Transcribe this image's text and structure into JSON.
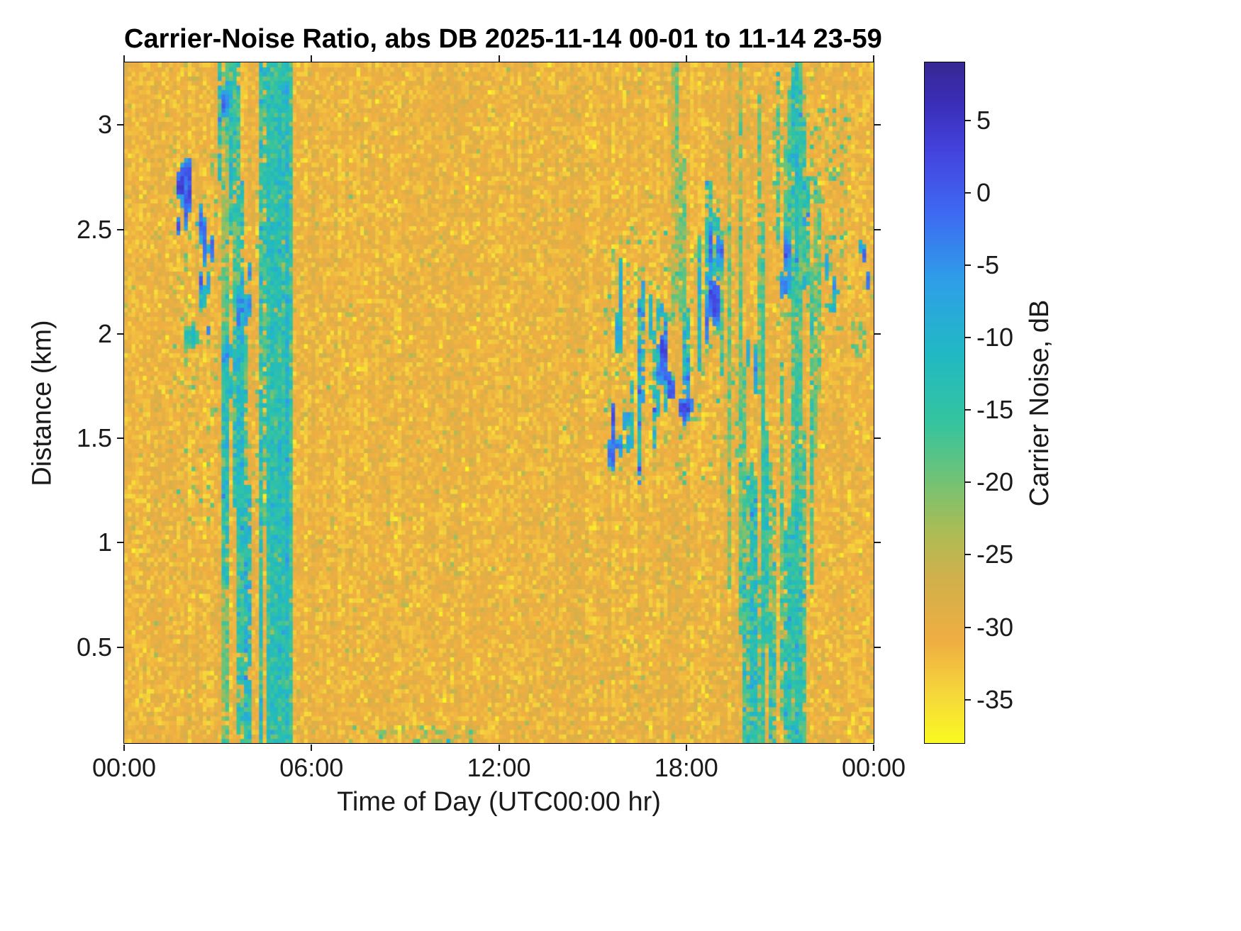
{
  "chart_data": {
    "type": "heatmap",
    "title": "Carrier-Noise Ratio, abs DB 2025-11-14 00-01 to 11-14 23-59",
    "xlabel": "Time of Day (UTC00:00 hr)",
    "ylabel": "Distance (km)",
    "colorbar_label": "Carrier Noise, dB",
    "x_range_hours": [
      0,
      24
    ],
    "y_range_km": [
      0.04,
      3.3
    ],
    "color_range_db": [
      -38,
      9
    ],
    "x_ticks": [
      {
        "hour": 0,
        "label": "00:00"
      },
      {
        "hour": 6,
        "label": "06:00"
      },
      {
        "hour": 12,
        "label": "12:00"
      },
      {
        "hour": 18,
        "label": "18:00"
      },
      {
        "hour": 24,
        "label": "00:00"
      }
    ],
    "y_ticks": [
      {
        "km": 0.5,
        "label": "0.5"
      },
      {
        "km": 1,
        "label": "1"
      },
      {
        "km": 1.5,
        "label": "1.5"
      },
      {
        "km": 2,
        "label": "2"
      },
      {
        "km": 2.5,
        "label": "2.5"
      },
      {
        "km": 3,
        "label": "3"
      }
    ],
    "colorbar_ticks": [
      {
        "db": 5,
        "label": "5"
      },
      {
        "db": 0,
        "label": "0"
      },
      {
        "db": -5,
        "label": "-5"
      },
      {
        "db": -10,
        "label": "-10"
      },
      {
        "db": -15,
        "label": "-15"
      },
      {
        "db": -20,
        "label": "-20"
      },
      {
        "db": -25,
        "label": "-25"
      },
      {
        "db": -30,
        "label": "-30"
      },
      {
        "db": -35,
        "label": "-35"
      }
    ],
    "colormap": [
      [
        0.0,
        "#FAF921"
      ],
      [
        0.07,
        "#F6D83B"
      ],
      [
        0.15,
        "#EFAE42"
      ],
      [
        0.24,
        "#D2B04B"
      ],
      [
        0.31,
        "#ACBC55"
      ],
      [
        0.39,
        "#6FC377"
      ],
      [
        0.47,
        "#35C49E"
      ],
      [
        0.57,
        "#21B9C3"
      ],
      [
        0.68,
        "#2E9FE8"
      ],
      [
        0.78,
        "#3E69F2"
      ],
      [
        0.87,
        "#4443DE"
      ],
      [
        0.94,
        "#3A2EB8"
      ],
      [
        1.0,
        "#372893"
      ]
    ],
    "grid": {
      "nx": 200,
      "ny": 150
    },
    "seed": 1337,
    "background": {
      "db_mean": -31,
      "db_sd": 1.9,
      "speck_prob": 0.015,
      "speck_db": -25
    },
    "features": [
      {
        "kind": "haze",
        "t": [
          1.5,
          4.3
        ],
        "d": [
          1.1,
          2.9
        ],
        "prob": 0.08,
        "db": -22,
        "sd": 3
      },
      {
        "kind": "blobs",
        "t": [
          1.7,
          2.1
        ],
        "d": [
          2.5,
          2.85
        ],
        "n": 9,
        "peak": 2,
        "sd": 3,
        "rt": 0.09,
        "rd": 0.07
      },
      {
        "kind": "blobs",
        "t": [
          2.3,
          2.9
        ],
        "d": [
          2.2,
          2.6
        ],
        "n": 8,
        "peak": -2,
        "sd": 4,
        "rt": 0.08,
        "rd": 0.07
      },
      {
        "kind": "blobs",
        "t": [
          2.4,
          2.8
        ],
        "d": [
          2.0,
          2.25
        ],
        "n": 5,
        "peak": -7,
        "sd": 4,
        "rt": 0.07,
        "rd": 0.05
      },
      {
        "kind": "blobs",
        "t": [
          2.0,
          2.35
        ],
        "d": [
          1.85,
          2.1
        ],
        "n": 5,
        "peak": -10,
        "sd": 4,
        "rt": 0.07,
        "rd": 0.06
      },
      {
        "kind": "streaks",
        "t": [
          3.0,
          3.6
        ],
        "d": [
          2.55,
          3.28
        ],
        "n": 6,
        "db": -16,
        "sd": 4
      },
      {
        "kind": "blobs",
        "t": [
          3.1,
          3.45
        ],
        "d": [
          2.95,
          3.25
        ],
        "n": 3,
        "peak": -4,
        "sd": 3,
        "rt": 0.06,
        "rd": 0.06
      },
      {
        "kind": "streaks",
        "t": [
          3.2,
          3.8
        ],
        "d": [
          1.3,
          2.2
        ],
        "n": 8,
        "db": -15,
        "sd": 4
      },
      {
        "kind": "blobs",
        "t": [
          3.6,
          4.1
        ],
        "d": [
          2.0,
          2.35
        ],
        "n": 6,
        "peak": -3,
        "sd": 4,
        "rt": 0.06,
        "rd": 0.07
      },
      {
        "kind": "blobs",
        "t": [
          3.3,
          3.7
        ],
        "d": [
          1.65,
          1.95
        ],
        "n": 5,
        "peak": -8,
        "sd": 4,
        "rt": 0.06,
        "rd": 0.05
      },
      {
        "kind": "streaks",
        "t": [
          3.05,
          3.35
        ],
        "d": [
          0.05,
          3.28
        ],
        "n": 4,
        "db": -20,
        "sd": 3
      },
      {
        "kind": "streaks",
        "t": [
          3.55,
          3.95
        ],
        "d": [
          0.05,
          1.6
        ],
        "n": 5,
        "db": -17,
        "sd": 4
      },
      {
        "kind": "streaks",
        "t": [
          4.3,
          4.6
        ],
        "d": [
          0.5,
          3.28
        ],
        "n": 4,
        "db": -18,
        "sd": 4
      },
      {
        "kind": "band",
        "t": [
          4.62,
          5.32
        ],
        "d": [
          0.04,
          3.3
        ],
        "db": -13,
        "sd": 2.5
      },
      {
        "kind": "haze",
        "t": [
          7.3,
          11.2
        ],
        "d": [
          0.04,
          0.12
        ],
        "prob": 0.3,
        "db": -22,
        "sd": 3
      },
      {
        "kind": "haze",
        "t": [
          13.8,
          21.8
        ],
        "d": [
          0.04,
          1.05
        ],
        "prob": 0.12,
        "db": -28,
        "sd": 1.2
      },
      {
        "kind": "haze",
        "t": [
          15.4,
          19.6
        ],
        "d": [
          1.3,
          2.5
        ],
        "prob": 0.1,
        "db": -21,
        "sd": 3
      },
      {
        "kind": "blobs",
        "t": [
          15.6,
          15.95
        ],
        "d": [
          2.0,
          2.35
        ],
        "n": 6,
        "peak": -5,
        "sd": 4,
        "rt": 0.05,
        "rd": 0.08
      },
      {
        "kind": "blobs",
        "t": [
          15.55,
          15.9
        ],
        "d": [
          1.35,
          1.62
        ],
        "n": 7,
        "peak": 1,
        "sd": 3,
        "rt": 0.06,
        "rd": 0.07
      },
      {
        "kind": "blobs",
        "t": [
          15.95,
          16.3
        ],
        "d": [
          1.4,
          1.6
        ],
        "n": 4,
        "peak": -4,
        "sd": 4,
        "rt": 0.05,
        "rd": 0.05
      },
      {
        "kind": "streaks",
        "t": [
          16.2,
          17.9
        ],
        "d": [
          1.55,
          2.0
        ],
        "n": 10,
        "db": -12,
        "sd": 5
      },
      {
        "kind": "blobs",
        "t": [
          16.9,
          17.6
        ],
        "d": [
          1.72,
          1.95
        ],
        "n": 8,
        "peak": 2,
        "sd": 3,
        "rt": 0.09,
        "rd": 0.06
      },
      {
        "kind": "blobs",
        "t": [
          17.7,
          18.25
        ],
        "d": [
          1.62,
          1.8
        ],
        "n": 6,
        "peak": 1,
        "sd": 3,
        "rt": 0.08,
        "rd": 0.05
      },
      {
        "kind": "blobs",
        "t": [
          16.8,
          17.3
        ],
        "d": [
          2.0,
          2.2
        ],
        "n": 4,
        "peak": -9,
        "sd": 4,
        "rt": 0.06,
        "rd": 0.05
      },
      {
        "kind": "blobs",
        "t": [
          18.5,
          19.2
        ],
        "d": [
          2.05,
          2.45
        ],
        "n": 10,
        "peak": 0,
        "sd": 4,
        "rt": 0.08,
        "rd": 0.09
      },
      {
        "kind": "streaks",
        "t": [
          18.3,
          19.5
        ],
        "d": [
          1.9,
          2.5
        ],
        "n": 6,
        "db": -14,
        "sd": 4
      },
      {
        "kind": "streaks",
        "t": [
          17.5,
          17.85
        ],
        "d": [
          1.9,
          3.28
        ],
        "n": 3,
        "db": -20,
        "sd": 3
      },
      {
        "kind": "streaks",
        "t": [
          19.3,
          19.8
        ],
        "d": [
          0.5,
          3.28
        ],
        "n": 4,
        "db": -21,
        "sd": 3
      },
      {
        "kind": "blobs",
        "t": [
          19.95,
          20.25
        ],
        "d": [
          1.8,
          2.05
        ],
        "n": 4,
        "peak": -4,
        "sd": 4,
        "rt": 0.04,
        "rd": 0.08
      },
      {
        "kind": "streaks",
        "t": [
          19.6,
          21.8
        ],
        "d": [
          0.04,
          1.35
        ],
        "n": 24,
        "db": -17,
        "sd": 4
      },
      {
        "kind": "streaks",
        "t": [
          20.3,
          21.75
        ],
        "d": [
          0.04,
          2.6
        ],
        "n": 6,
        "db": -19,
        "sd": 3
      },
      {
        "kind": "haze",
        "t": [
          20.8,
          23.2
        ],
        "d": [
          2.0,
          3.1
        ],
        "prob": 0.13,
        "db": -20,
        "sd": 3
      },
      {
        "kind": "streaks",
        "t": [
          20.9,
          21.6
        ],
        "d": [
          2.6,
          3.2
        ],
        "n": 4,
        "db": -18,
        "sd": 3
      },
      {
        "kind": "streaks",
        "t": [
          21.85,
          22.3
        ],
        "d": [
          1.5,
          3.28
        ],
        "n": 3,
        "db": -19,
        "sd": 3
      },
      {
        "kind": "blobs",
        "t": [
          20.9,
          21.4
        ],
        "d": [
          2.2,
          2.45
        ],
        "n": 6,
        "peak": -3,
        "sd": 4,
        "rt": 0.06,
        "rd": 0.06
      },
      {
        "kind": "streaks",
        "t": [
          21.3,
          21.95
        ],
        "d": [
          2.4,
          3.0
        ],
        "n": 5,
        "db": -14,
        "sd": 4
      },
      {
        "kind": "blobs",
        "t": [
          21.5,
          21.85
        ],
        "d": [
          2.75,
          2.95
        ],
        "n": 3,
        "peak": -8,
        "sd": 3,
        "rt": 0.05,
        "rd": 0.05
      },
      {
        "kind": "blobs",
        "t": [
          22.4,
          22.95
        ],
        "d": [
          2.1,
          2.35
        ],
        "n": 5,
        "peak": -4,
        "sd": 4,
        "rt": 0.05,
        "rd": 0.06
      },
      {
        "kind": "blobs",
        "t": [
          23.5,
          23.95
        ],
        "d": [
          2.25,
          2.45
        ],
        "n": 4,
        "peak": -3,
        "sd": 3,
        "rt": 0.05,
        "rd": 0.06
      },
      {
        "kind": "haze",
        "t": [
          23.3,
          23.65
        ],
        "d": [
          1.9,
          2.05
        ],
        "prob": 0.5,
        "db": -20,
        "sd": 2
      }
    ]
  }
}
